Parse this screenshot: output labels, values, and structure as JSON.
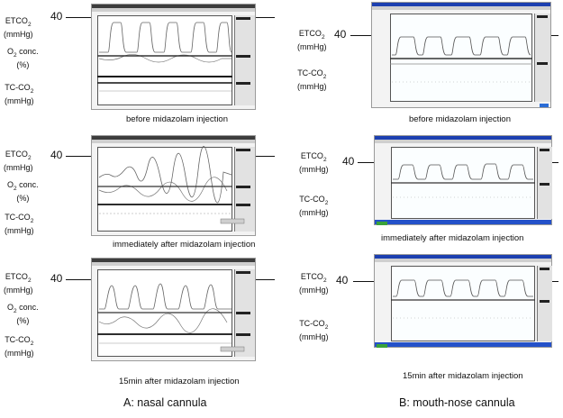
{
  "figure": {
    "reference_value": "40",
    "columns": [
      {
        "id": "A",
        "caption": "A: nasal cannula",
        "panels": [
          {
            "caption": "before midazolam injection",
            "labels": {
              "etco2": "ETCO",
              "etco2_sub": "2",
              "etco2_unit": "(mmHg)",
              "o2": "O",
              "o2_sub": "2",
              "o2_rest": " conc.",
              "o2_unit": "(%)",
              "tcco2": "TC-CO",
              "tcco2_sub": "2",
              "tcco2_unit": "(mmHg)"
            }
          },
          {
            "caption": "immediately after midazolam injection",
            "labels": {
              "etco2": "ETCO",
              "etco2_sub": "2",
              "etco2_unit": "(mmHg)",
              "o2": "O",
              "o2_sub": "2",
              "o2_rest": " conc.",
              "o2_unit": "(%)",
              "tcco2": "TC-CO",
              "tcco2_sub": "2",
              "tcco2_unit": "(mmHg)"
            }
          },
          {
            "caption": "15min after midazolam injection",
            "labels": {
              "etco2": "ETCO",
              "etco2_sub": "2",
              "etco2_unit": "(mmHg)",
              "o2": "O",
              "o2_sub": "2",
              "o2_rest": " conc.",
              "o2_unit": "(%)",
              "tcco2": "TC-CO",
              "tcco2_sub": "2",
              "tcco2_unit": "(mmHg)"
            }
          }
        ]
      },
      {
        "id": "B",
        "caption": "B: mouth-nose cannula",
        "panels": [
          {
            "caption": "before midazolam injection",
            "labels": {
              "etco2": "ETCO",
              "etco2_sub": "2",
              "etco2_unit": "(mmHg)",
              "tcco2": "TC-CO",
              "tcco2_sub": "2",
              "tcco2_unit": "(mmHg)"
            }
          },
          {
            "caption": "immediately after midazolam injection",
            "labels": {
              "etco2": "ETCO",
              "etco2_sub": "2",
              "etco2_unit": "(mmHg)",
              "tcco2": "TC-CO",
              "tcco2_sub": "2",
              "tcco2_unit": "(mmHg)"
            }
          },
          {
            "caption": "15min after midazolam injection",
            "labels": {
              "etco2": "ETCO",
              "etco2_sub": "2",
              "etco2_unit": "(mmHg)",
              "tcco2": "TC-CO",
              "tcco2_sub": "2",
              "tcco2_unit": "(mmHg)"
            }
          }
        ]
      }
    ]
  }
}
